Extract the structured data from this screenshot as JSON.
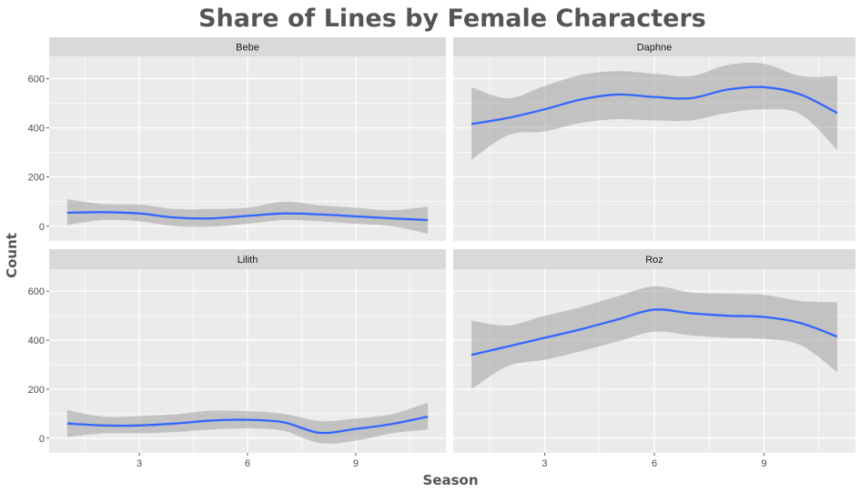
{
  "chart_data": {
    "type": "line",
    "title": "Share of Lines by Female Characters",
    "xlabel": "Season",
    "ylabel": "Count",
    "xlim": [
      0.5,
      11.5
    ],
    "ylim": [
      -60,
      690
    ],
    "x_ticks": [
      3,
      6,
      9
    ],
    "y_ticks": [
      0,
      200,
      400,
      600
    ],
    "grid": true,
    "smoothing_band": true,
    "colors": {
      "line": "#3366FF",
      "band": "#999999",
      "panel_bg": "#EBEBEB",
      "strip_bg": "#D9D9D9",
      "grid": "#FFFFFF"
    },
    "panels": [
      {
        "name": "Bebe",
        "x": [
          1,
          2,
          3,
          4,
          5,
          6,
          7,
          8,
          9,
          10,
          11
        ],
        "values": [
          55,
          57,
          52,
          35,
          32,
          42,
          52,
          48,
          40,
          32,
          25
        ],
        "band_low": [
          5,
          25,
          20,
          0,
          -2,
          10,
          25,
          20,
          10,
          0,
          -30
        ],
        "band_high": [
          110,
          90,
          88,
          70,
          70,
          75,
          100,
          85,
          75,
          65,
          80
        ]
      },
      {
        "name": "Daphne",
        "x": [
          1,
          2,
          3,
          4,
          5,
          6,
          7,
          8,
          9,
          10,
          11
        ],
        "values": [
          415,
          440,
          475,
          515,
          535,
          525,
          520,
          555,
          565,
          535,
          460
        ],
        "band_low": [
          270,
          370,
          385,
          420,
          435,
          430,
          430,
          460,
          475,
          455,
          310
        ],
        "band_high": [
          565,
          520,
          570,
          615,
          630,
          620,
          610,
          655,
          660,
          610,
          610
        ]
      },
      {
        "name": "Lilith",
        "x": [
          1,
          2,
          3,
          4,
          5,
          6,
          7,
          8,
          9,
          10,
          11
        ],
        "values": [
          60,
          52,
          52,
          60,
          72,
          75,
          65,
          22,
          38,
          58,
          88
        ],
        "band_low": [
          5,
          20,
          20,
          25,
          35,
          40,
          30,
          -20,
          -10,
          20,
          35
        ],
        "band_high": [
          115,
          88,
          90,
          98,
          112,
          110,
          100,
          70,
          80,
          98,
          145
        ]
      },
      {
        "name": "Roz",
        "x": [
          1,
          2,
          3,
          4,
          5,
          6,
          7,
          8,
          9,
          10,
          11
        ],
        "values": [
          340,
          375,
          410,
          445,
          485,
          525,
          510,
          500,
          495,
          470,
          415
        ],
        "band_low": [
          200,
          295,
          320,
          355,
          395,
          435,
          420,
          410,
          405,
          380,
          270
        ],
        "band_high": [
          480,
          460,
          500,
          535,
          580,
          620,
          595,
          590,
          585,
          560,
          555
        ]
      }
    ]
  }
}
